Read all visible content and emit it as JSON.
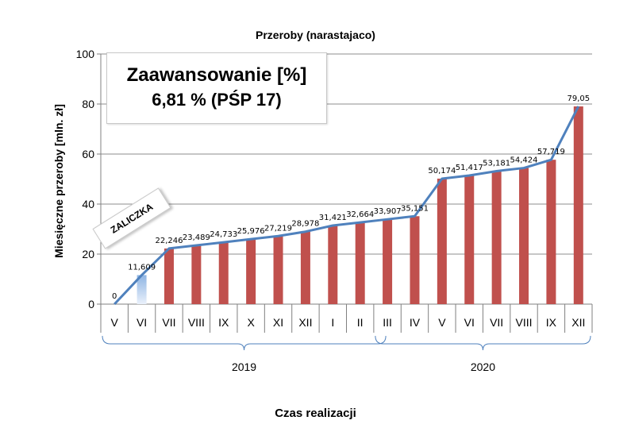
{
  "chart_data": {
    "type": "bar",
    "title": "Przeroby (narastajaco)",
    "xlabel": "Czas realizacji",
    "ylabel": "Miesięczne  przeroby [mln. zł]",
    "ylim": [
      0,
      100
    ],
    "yticks": [
      0,
      20,
      40,
      60,
      80,
      100
    ],
    "grid": true,
    "categories": [
      "V",
      "VI",
      "VII",
      "VIII",
      "IX",
      "X",
      "XI",
      "XII",
      "I",
      "II",
      "III",
      "IV",
      "V",
      "VI",
      "VII",
      "VIII",
      "IX",
      "XII"
    ],
    "values": [
      0,
      11.609,
      22.246,
      23.489,
      24.733,
      25.976,
      27.219,
      28.978,
      31.421,
      32.664,
      33.907,
      35.151,
      50.174,
      51.417,
      53.181,
      54.424,
      57.719,
      79.05
    ],
    "value_labels": [
      "0",
      "11,609",
      "22,246",
      "23,489",
      "24,733",
      "25,976",
      "27,219",
      "28,978",
      "31,421",
      "32,664",
      "33,907",
      "35,151",
      "50,174",
      "51,417",
      "53,181",
      "54,424",
      "57,719",
      "79,05"
    ],
    "line_series": "cumulative line over the same values",
    "year_groups": [
      {
        "label": "2019",
        "from": 0,
        "to": 10
      },
      {
        "label": "2020",
        "from": 10,
        "to": 17
      }
    ],
    "colors": {
      "bar": "#c0504d",
      "advance_bar": "#c6d9f1",
      "line": "#4f81bd",
      "grid": "#8c8c8c"
    }
  },
  "info_box": {
    "line1": "Zaawansowanie [%]",
    "line2": "6,81 % (PŚP 17)"
  },
  "advance_tag": "ZALICZKA"
}
